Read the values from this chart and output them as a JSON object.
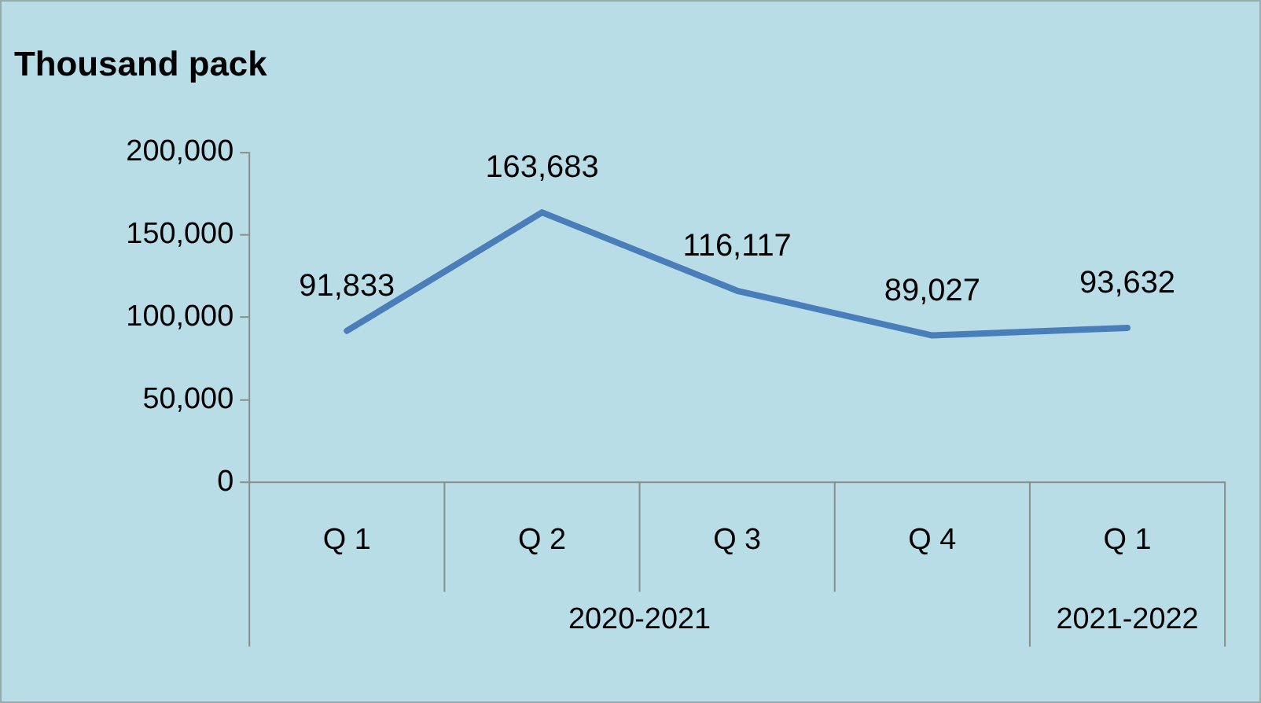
{
  "chart_data": {
    "type": "line",
    "title": "Thousand pack",
    "categories": [
      "Q 1",
      "Q 2",
      "Q 3",
      "Q 4",
      "Q 1"
    ],
    "values": [
      91833,
      163683,
      116117,
      89027,
      93632
    ],
    "color": "#4a7ebb",
    "value_labels": [
      "91,833",
      "163,683",
      "116,117",
      "89,027",
      "93,632"
    ],
    "ylim": [
      0,
      200000
    ],
    "yticks": [
      0,
      {
        "value": 50000,
        "label": "50,000"
      },
      {
        "value": 100000,
        "label": "100,000"
      },
      {
        "value": 150000,
        "label": "150,000"
      },
      {
        "value": 200000,
        "label": "200,000"
      }
    ],
    "grid": false,
    "legend": false,
    "marker": "none",
    "annotations": [
      "2020-2021",
      "2021-2022"
    ]
  }
}
